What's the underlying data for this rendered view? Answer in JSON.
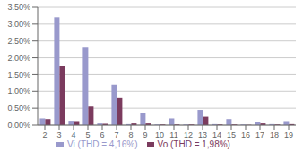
{
  "chart_data": {
    "type": "bar",
    "categories": [
      "2",
      "3",
      "4",
      "5",
      "6",
      "7",
      "8",
      "9",
      "10",
      "11",
      "12",
      "13",
      "14",
      "15",
      "16",
      "17",
      "18",
      "19"
    ],
    "series": [
      {
        "name": "Vi (THD = 4,16%)",
        "color": "#9999CC",
        "values": [
          0.002,
          0.032,
          0.0013,
          0.023,
          0.0005,
          0.012,
          0.0003,
          0.0035,
          0.0002,
          0.002,
          0.0002,
          0.0045,
          0.0003,
          0.0018,
          0.0002,
          0.0008,
          0.0003,
          0.0012
        ]
      },
      {
        "name": "Vo (THD = 1,98%)",
        "color": "#7B3B5E",
        "values": [
          0.0018,
          0.0175,
          0.0012,
          0.0055,
          0.0004,
          0.008,
          0.0005,
          0.0005,
          0.0002,
          0.0002,
          0.0002,
          0.0025,
          0.0002,
          0.0002,
          0.0001,
          0.0005,
          0.0002,
          0.0003
        ]
      }
    ],
    "ylim": [
      0,
      0.035
    ],
    "yticks": [
      {
        "value": 0.0,
        "label": "0.00%"
      },
      {
        "value": 0.005,
        "label": "0.50%"
      },
      {
        "value": 0.01,
        "label": "1.00%"
      },
      {
        "value": 0.015,
        "label": "1.50%"
      },
      {
        "value": 0.02,
        "label": "2.00%"
      },
      {
        "value": 0.025,
        "label": "2.50%"
      },
      {
        "value": 0.03,
        "label": "3.00%"
      },
      {
        "value": 0.035,
        "label": "3.50%"
      }
    ],
    "grid": true,
    "legend": "bottom"
  }
}
